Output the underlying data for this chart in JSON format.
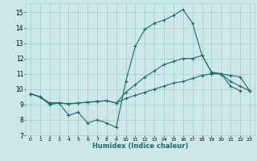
{
  "xlabel": "Humidex (Indice chaleur)",
  "bg_color": "#cde8e8",
  "grid_color": "#aacfcf",
  "line_color": "#1a6b6b",
  "xlim": [
    -0.5,
    23.5
  ],
  "ylim": [
    7,
    15.6
  ],
  "xticks": [
    0,
    1,
    2,
    3,
    4,
    5,
    6,
    7,
    8,
    9,
    10,
    11,
    12,
    13,
    14,
    15,
    16,
    17,
    18,
    19,
    20,
    21,
    22,
    23
  ],
  "yticks": [
    7,
    8,
    9,
    10,
    11,
    12,
    13,
    14,
    15
  ],
  "series": [
    [
      9.7,
      9.5,
      9.0,
      9.1,
      8.3,
      8.5,
      7.8,
      8.0,
      7.8,
      7.5,
      10.5,
      12.8,
      13.9,
      14.3,
      14.5,
      14.8,
      15.2,
      14.3,
      12.2,
      11.1,
      11.0,
      10.2,
      9.9,
      null
    ],
    [
      9.7,
      9.5,
      9.1,
      9.1,
      9.05,
      9.1,
      9.15,
      9.2,
      9.25,
      9.1,
      9.4,
      9.6,
      9.8,
      10.0,
      10.2,
      10.4,
      10.5,
      10.7,
      10.9,
      11.0,
      11.0,
      10.9,
      10.8,
      9.9
    ],
    [
      9.7,
      9.5,
      9.1,
      9.1,
      9.05,
      9.1,
      9.15,
      9.2,
      9.25,
      9.1,
      9.8,
      10.3,
      10.8,
      11.2,
      11.6,
      11.8,
      12.0,
      12.0,
      12.2,
      11.1,
      11.0,
      10.5,
      10.2,
      9.9
    ]
  ]
}
